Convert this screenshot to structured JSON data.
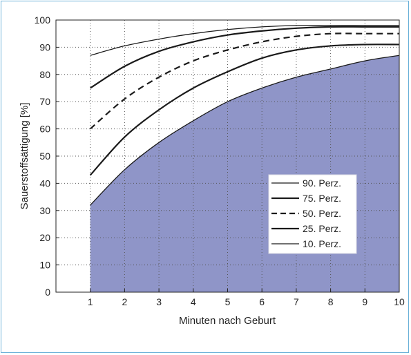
{
  "chart_data": {
    "type": "line",
    "xlabel": "Minuten nach Geburt",
    "ylabel": "Sauerstoffsättigung [%]",
    "xlim": [
      0,
      10
    ],
    "ylim": [
      0,
      100
    ],
    "xticks": [
      1,
      2,
      3,
      4,
      5,
      6,
      7,
      8,
      9,
      10
    ],
    "yticks": [
      0,
      10,
      20,
      30,
      40,
      50,
      60,
      70,
      80,
      90,
      100
    ],
    "grid": true,
    "legend_position": "right, lower middle",
    "fill_under_series": "10. Perz.",
    "fill_color": "#8f95c8",
    "x": [
      1,
      2,
      3,
      4,
      5,
      6,
      7,
      8,
      9,
      10
    ],
    "series": [
      {
        "name": "90. Perz.",
        "style": "solid-thin",
        "values": [
          87,
          90.5,
          93,
          95,
          96.5,
          97.5,
          98,
          98,
          98,
          98
        ]
      },
      {
        "name": "75. Perz.",
        "style": "solid-thick",
        "values": [
          75,
          83,
          88.5,
          92,
          94.5,
          96,
          97,
          97.5,
          97.5,
          97.5
        ]
      },
      {
        "name": "50. Perz.",
        "style": "dashed",
        "values": [
          60,
          71,
          79,
          85,
          89,
          92,
          94,
          95,
          95,
          95
        ]
      },
      {
        "name": "25. Perz.",
        "style": "solid-thick",
        "values": [
          43,
          57,
          67,
          75,
          81,
          86,
          89,
          90.5,
          91,
          91
        ]
      },
      {
        "name": "10. Perz.",
        "style": "solid-thin",
        "values": [
          32,
          45,
          55,
          63,
          70,
          75,
          79,
          82,
          85,
          87
        ]
      }
    ]
  }
}
